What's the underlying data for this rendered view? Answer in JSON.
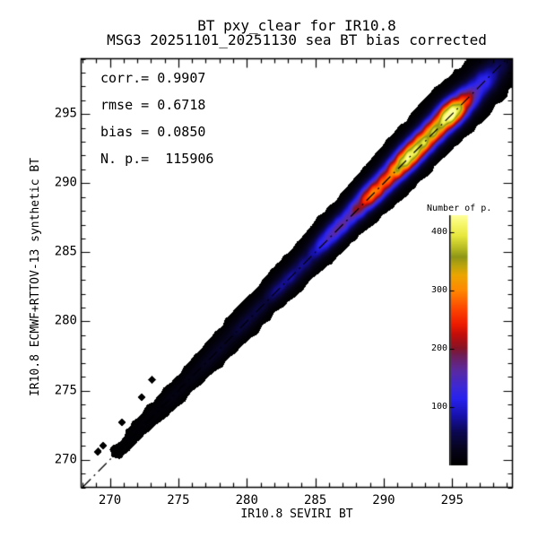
{
  "title": {
    "line1": "BT pxy_clear for IR10.8",
    "line2": "MSG3 20251101_20251130 sea BT bias corrected"
  },
  "stats": {
    "corr": "corr.= 0.9907",
    "rmse": "rmse = 0.6718",
    "bias": "bias = 0.0850",
    "npoints": "N. p.=  115906"
  },
  "chart_data": {
    "type": "heatmap",
    "title": "BT pxy_clear for IR10.8",
    "subtitle": "MSG3 20251101_20251130 sea BT bias corrected",
    "xlabel": "IR10.8 SEVIRI BT",
    "ylabel": "IR10.8 ECMWF+RTTOV-13 synthetic BT",
    "xlim": [
      267.9,
      299.4
    ],
    "ylim": [
      268.0,
      299.0
    ],
    "x_major_ticks": [
      270,
      275,
      280,
      285,
      290,
      295
    ],
    "y_major_ticks": [
      270,
      275,
      280,
      285,
      290,
      295
    ],
    "minor_tick_step": 1,
    "statistics": {
      "corr": 0.9907,
      "rmse": 0.6718,
      "bias": 0.085,
      "n_points": 115906
    },
    "identity_line": {
      "style": "dash-dot",
      "from": 268.0,
      "to": 299.0
    },
    "colorbar": {
      "title": "Number of p.",
      "ticks": [
        100,
        200,
        300,
        400
      ],
      "vmin": 0,
      "vmax": 430,
      "stops": [
        [
          0.0,
          "#000000"
        ],
        [
          0.06,
          "#06041a"
        ],
        [
          0.13,
          "#0c0850"
        ],
        [
          0.2,
          "#1812b0"
        ],
        [
          0.265,
          "#2822ee"
        ],
        [
          0.31,
          "#3c28d8"
        ],
        [
          0.38,
          "#5c2aa0"
        ],
        [
          0.44,
          "#701e55"
        ],
        [
          0.47,
          "#881425"
        ],
        [
          0.52,
          "#c00d0c"
        ],
        [
          0.565,
          "#ee1c00"
        ],
        [
          0.62,
          "#fc4200"
        ],
        [
          0.7,
          "#ff8800"
        ],
        [
          0.76,
          "#eda600"
        ],
        [
          0.8,
          "#baa40e"
        ],
        [
          0.835,
          "#8f9617"
        ],
        [
          0.87,
          "#b8bc22"
        ],
        [
          0.92,
          "#e8e83e"
        ],
        [
          0.97,
          "#f8f870"
        ],
        [
          1.0,
          "#ffff9c"
        ]
      ]
    },
    "density": {
      "description": "joint density of synthetic vs observed BT concentrated along the 1:1 line",
      "sigma_u_at_270": 0.43,
      "sigma_u_slope": 0.0155,
      "bias_offset": 0.085,
      "bin_size": 0.5,
      "ridge_profile": [
        [
          269.95,
          0.5
        ],
        [
          270.3,
          4.5
        ],
        [
          271.5,
          7
        ],
        [
          273,
          11
        ],
        [
          275,
          17
        ],
        [
          277,
          26
        ],
        [
          279,
          38
        ],
        [
          281,
          55
        ],
        [
          283,
          80
        ],
        [
          285,
          115
        ],
        [
          286,
          148
        ],
        [
          287,
          205
        ],
        [
          288,
          265
        ],
        [
          289,
          330
        ],
        [
          290,
          370
        ],
        [
          290.6,
          348
        ],
        [
          291,
          395
        ],
        [
          292,
          405
        ],
        [
          293,
          400
        ],
        [
          294,
          415
        ],
        [
          294.9,
          430
        ],
        [
          295.6,
          420
        ],
        [
          296.2,
          270
        ],
        [
          297,
          150
        ],
        [
          297.7,
          95
        ],
        [
          298.4,
          65
        ],
        [
          299.1,
          42
        ],
        [
          299.6,
          32
        ]
      ],
      "outlier_points": [
        [
          269.1,
          270.6
        ],
        [
          269.45,
          271.05
        ],
        [
          270.85,
          272.75
        ],
        [
          272.3,
          274.55
        ],
        [
          273.05,
          275.8
        ]
      ]
    }
  }
}
